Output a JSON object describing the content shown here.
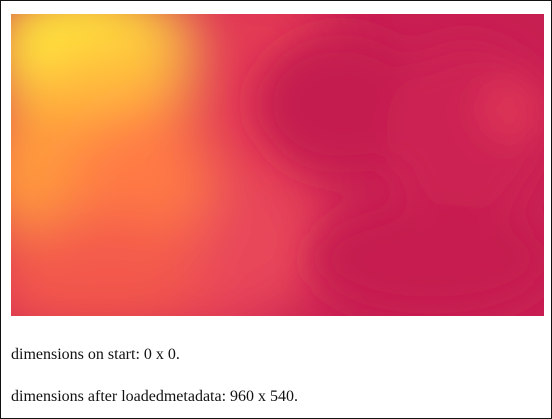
{
  "page": {
    "video": {
      "icon": "video-frame",
      "colors": {
        "base": "#c81f52",
        "yellow": "#ffee3a",
        "orange": "#ff9a3e",
        "pink_red": "#e63a56"
      }
    },
    "status": {
      "start_text": "dimensions on start: 0 x 0.",
      "loaded_text": "dimensions after loadedmetadata: 960 x 540."
    }
  }
}
